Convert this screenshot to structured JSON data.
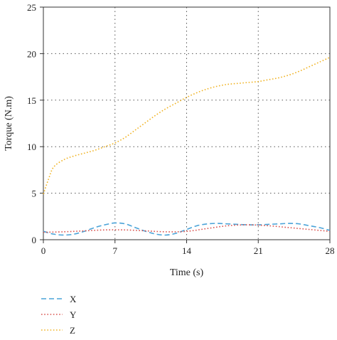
{
  "chart_data": {
    "type": "line",
    "title": "",
    "xlabel": "Time (s)",
    "ylabel": "Torque (N.m)",
    "xlim": [
      0,
      28
    ],
    "ylim": [
      0,
      25
    ],
    "xticks": [
      0,
      7,
      14,
      21,
      28
    ],
    "yticks": [
      0,
      5,
      10,
      15,
      20,
      25
    ],
    "grid": true,
    "legend_position": "bottom-left",
    "series": [
      {
        "name": "X",
        "color": "#4aa3d8",
        "dash": "dashed",
        "x": [
          0,
          1,
          2,
          3,
          4,
          5,
          6,
          7,
          8,
          9,
          10,
          11,
          12,
          13,
          14,
          15,
          16,
          17,
          18,
          19,
          20,
          21,
          22,
          23,
          24,
          25,
          26,
          27,
          28
        ],
        "y": [
          0.9,
          0.6,
          0.5,
          0.6,
          0.9,
          1.3,
          1.6,
          1.8,
          1.7,
          1.3,
          0.9,
          0.6,
          0.5,
          0.7,
          1.1,
          1.5,
          1.7,
          1.75,
          1.7,
          1.65,
          1.6,
          1.6,
          1.65,
          1.7,
          1.75,
          1.7,
          1.5,
          1.3,
          1.0
        ]
      },
      {
        "name": "Y",
        "color": "#d9534f",
        "dash": "dotted",
        "x": [
          0,
          2,
          4,
          6,
          8,
          10,
          12,
          14,
          16,
          18,
          20,
          22,
          24,
          26,
          28
        ],
        "y": [
          0.8,
          0.85,
          0.95,
          1.05,
          1.05,
          0.95,
          0.85,
          0.9,
          1.2,
          1.5,
          1.6,
          1.5,
          1.3,
          1.1,
          0.9
        ]
      },
      {
        "name": "Z",
        "color": "#f0b323",
        "dash": "dotted",
        "x": [
          0,
          0.5,
          1,
          2,
          3,
          4,
          5,
          6,
          7,
          8,
          9,
          10,
          11,
          12,
          13,
          14,
          15,
          16,
          17,
          18,
          19,
          20,
          21,
          22,
          23,
          24,
          25,
          26,
          27,
          28
        ],
        "y": [
          4.9,
          6.5,
          7.8,
          8.6,
          9.0,
          9.3,
          9.6,
          10.0,
          10.4,
          11.0,
          11.8,
          12.6,
          13.4,
          14.1,
          14.7,
          15.3,
          15.8,
          16.2,
          16.5,
          16.7,
          16.8,
          16.9,
          17.0,
          17.2,
          17.4,
          17.7,
          18.1,
          18.6,
          19.1,
          19.6
        ]
      }
    ]
  }
}
